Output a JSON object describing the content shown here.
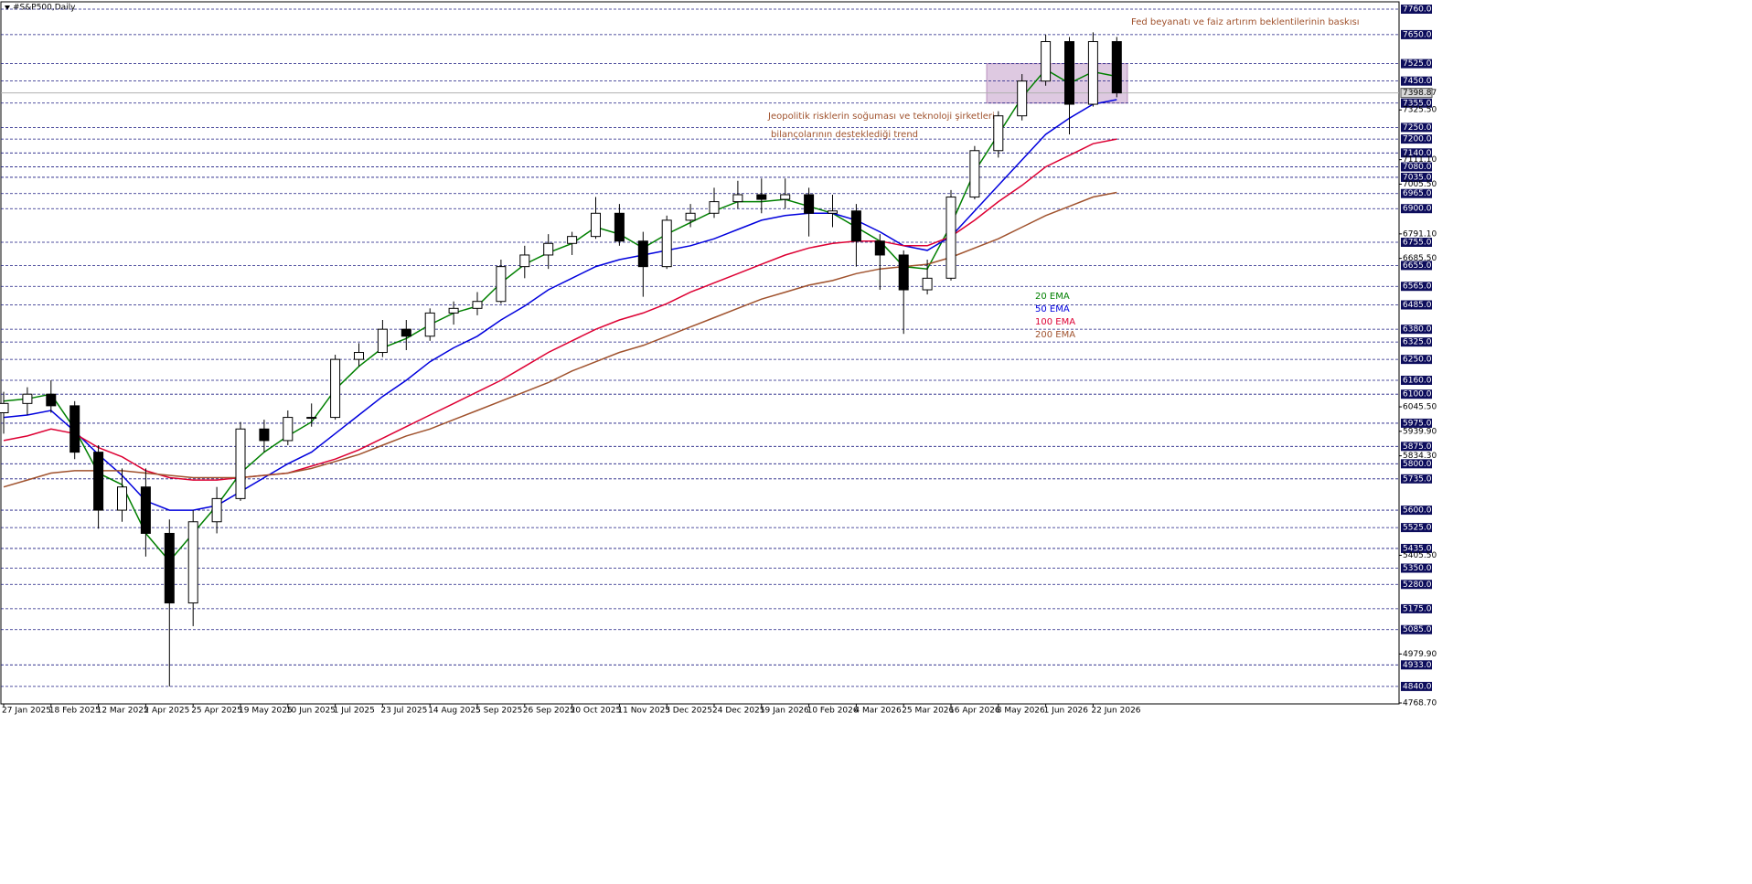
{
  "chart_data": {
    "type": "candlestick",
    "title": "#S&P500,Daily",
    "ylim": [
      4768.7,
      7760
    ],
    "categories": [
      "27 Jan 2025",
      null,
      "18 Feb 2025",
      null,
      "12 Mar 2025",
      null,
      "2 Apr 2025",
      null,
      "25 Apr 2025",
      null,
      "19 May 2025",
      null,
      "10 Jun 2025",
      null,
      "1 Jul 2025",
      null,
      "23 Jul 2025",
      null,
      "14 Aug 2025",
      null,
      "5 Sep 2025",
      null,
      "26 Sep 2025",
      null,
      "20 Oct 2025",
      null,
      "11 Nov 2025",
      null,
      "3 Dec 2025",
      null,
      "24 Dec 2025",
      null,
      "19 Jan 2026",
      null,
      "10 Feb 2026",
      null,
      "4 Mar 2026",
      null,
      "25 Mar 2026",
      null,
      "16 Apr 2026",
      null,
      "8 May 2026",
      null,
      "1 Jun 2026",
      null,
      "22 Jun 2026",
      null
    ],
    "open": [
      6020,
      6060,
      6100,
      6050,
      5850,
      5600,
      5700,
      5500,
      5200,
      5550,
      5650,
      5950,
      5900,
      6000,
      6000,
      6250,
      6280,
      6380,
      6350,
      6450,
      6470,
      6500,
      6650,
      6700,
      6750,
      6780,
      6880,
      6760,
      6650,
      6850,
      6880,
      6930,
      6960,
      6940,
      6960,
      6880,
      6890,
      6760,
      6700,
      6550,
      6600,
      6950,
      7150,
      7300,
      7450,
      7620,
      7350,
      7620
    ],
    "high": [
      6110,
      6130,
      6160,
      6070,
      5880,
      5780,
      5780,
      5560,
      5600,
      5700,
      5980,
      5990,
      6030,
      6060,
      6270,
      6320,
      6420,
      6420,
      6470,
      6500,
      6540,
      6680,
      6740,
      6790,
      6800,
      6950,
      6920,
      6800,
      6870,
      6920,
      6990,
      7020,
      7030,
      7030,
      6990,
      6960,
      6920,
      6790,
      6720,
      6680,
      6980,
      7170,
      7320,
      7480,
      7650,
      7640,
      7660,
      7640
    ],
    "low": [
      5930,
      6010,
      6020,
      5820,
      5520,
      5550,
      5400,
      4840,
      5100,
      5500,
      5640,
      5850,
      5880,
      5960,
      5990,
      6220,
      6260,
      6290,
      6330,
      6400,
      6440,
      6490,
      6600,
      6640,
      6700,
      6770,
      6740,
      6520,
      6640,
      6820,
      6860,
      6900,
      6880,
      6900,
      6780,
      6820,
      6650,
      6550,
      6360,
      6530,
      6590,
      6940,
      7120,
      7280,
      7430,
      7220,
      7340,
      7380
    ],
    "close": [
      6060,
      6100,
      6050,
      5850,
      5600,
      5700,
      5500,
      5200,
      5550,
      5650,
      5950,
      5900,
      6000,
      6000,
      6250,
      6280,
      6380,
      6350,
      6450,
      6470,
      6500,
      6650,
      6700,
      6750,
      6780,
      6880,
      6760,
      6650,
      6850,
      6880,
      6930,
      6960,
      6940,
      6960,
      6880,
      6890,
      6760,
      6700,
      6550,
      6600,
      6950,
      7150,
      7300,
      7450,
      7620,
      7350,
      7620,
      7398.87
    ],
    "series": [
      {
        "name": "20 EMA",
        "color": "#008000",
        "values": [
          6070,
          6080,
          6100,
          5950,
          5760,
          5710,
          5500,
          5380,
          5500,
          5620,
          5760,
          5850,
          5920,
          5980,
          6120,
          6220,
          6300,
          6340,
          6400,
          6450,
          6480,
          6580,
          6660,
          6710,
          6750,
          6820,
          6790,
          6730,
          6790,
          6840,
          6890,
          6930,
          6930,
          6940,
          6910,
          6880,
          6820,
          6760,
          6650,
          6640,
          6830,
          7060,
          7220,
          7380,
          7500,
          7440,
          7490,
          7470
        ]
      },
      {
        "name": "50 EMA",
        "color": "#0000dd",
        "values": [
          6000,
          6010,
          6030,
          5940,
          5840,
          5750,
          5640,
          5600,
          5600,
          5620,
          5680,
          5740,
          5800,
          5850,
          5930,
          6010,
          6090,
          6160,
          6240,
          6300,
          6350,
          6420,
          6480,
          6550,
          6600,
          6650,
          6680,
          6700,
          6720,
          6740,
          6770,
          6810,
          6850,
          6870,
          6880,
          6880,
          6850,
          6800,
          6740,
          6720,
          6780,
          6890,
          7000,
          7110,
          7220,
          7290,
          7350,
          7370
        ]
      },
      {
        "name": "100 EMA",
        "color": "#dd0033",
        "values": [
          5900,
          5920,
          5950,
          5930,
          5870,
          5830,
          5770,
          5740,
          5730,
          5730,
          5740,
          5750,
          5760,
          5790,
          5820,
          5860,
          5910,
          5960,
          6010,
          6060,
          6110,
          6160,
          6220,
          6280,
          6330,
          6380,
          6420,
          6450,
          6490,
          6540,
          6580,
          6620,
          6660,
          6700,
          6730,
          6750,
          6760,
          6760,
          6740,
          6740,
          6780,
          6850,
          6930,
          7000,
          7080,
          7130,
          7180,
          7200
        ]
      },
      {
        "name": "200 EMA",
        "color": "#a0522d",
        "values": [
          5700,
          5730,
          5760,
          5770,
          5770,
          5770,
          5760,
          5750,
          5740,
          5740,
          5740,
          5750,
          5760,
          5780,
          5810,
          5840,
          5880,
          5920,
          5950,
          5990,
          6030,
          6070,
          6110,
          6150,
          6200,
          6240,
          6280,
          6310,
          6350,
          6390,
          6430,
          6470,
          6510,
          6540,
          6570,
          6590,
          6620,
          6640,
          6650,
          6660,
          6690,
          6730,
          6770,
          6820,
          6870,
          6910,
          6950,
          6970
        ]
      }
    ],
    "levels": [
      {
        "value": 7760,
        "label": "7760.00"
      },
      {
        "value": 7650,
        "label": "7650.00"
      },
      {
        "value": 7525,
        "label": "7525.00"
      },
      {
        "value": 7450,
        "label": "7450.00"
      },
      {
        "value": 7355,
        "label": "7355.00"
      },
      {
        "value": 7250,
        "label": "7250.00"
      },
      {
        "value": 7200,
        "label": "7200.00"
      },
      {
        "value": 7140,
        "label": "7140.00"
      },
      {
        "value": 7080,
        "label": "7080.00"
      },
      {
        "value": 7035,
        "label": "7035.00"
      },
      {
        "value": 6965,
        "label": "6965.00"
      },
      {
        "value": 6900,
        "label": "6900.00"
      },
      {
        "value": 6755,
        "label": "6755.00"
      },
      {
        "value": 6655,
        "label": "6655.00"
      },
      {
        "value": 6565,
        "label": "6565.00"
      },
      {
        "value": 6485,
        "label": "6485.00"
      },
      {
        "value": 6380,
        "label": "6380.00"
      },
      {
        "value": 6325,
        "label": "6325.00"
      },
      {
        "value": 6250,
        "label": "6250.00"
      },
      {
        "value": 6160,
        "label": "6160.00"
      },
      {
        "value": 6100,
        "label": "6100.00"
      },
      {
        "value": 5975,
        "label": "5975.00"
      },
      {
        "value": 5875,
        "label": "5875.00"
      },
      {
        "value": 5800,
        "label": "5800.00"
      },
      {
        "value": 5735,
        "label": "5735.00"
      },
      {
        "value": 5600,
        "label": "5600.00"
      },
      {
        "value": 5525,
        "label": "5525.00"
      },
      {
        "value": 5435,
        "label": "5435.00"
      },
      {
        "value": 5350,
        "label": "5350.00"
      },
      {
        "value": 5280,
        "label": "5280.00"
      },
      {
        "value": 5175,
        "label": "5175.00"
      },
      {
        "value": 5085,
        "label": "5085.00"
      },
      {
        "value": 4933,
        "label": "4933.00"
      },
      {
        "value": 4840,
        "label": "4840.00"
      }
    ],
    "yticks": [
      {
        "value": 7325.5,
        "label": "7325.50"
      },
      {
        "value": 7111.1,
        "label": "7111.10"
      },
      {
        "value": 7005.5,
        "label": "7005.50"
      },
      {
        "value": 6791.1,
        "label": "6791.10"
      },
      {
        "value": 6685.5,
        "label": "6685.50"
      },
      {
        "value": 6045.5,
        "label": "6045.50"
      },
      {
        "value": 5939.9,
        "label": "5939.90"
      },
      {
        "value": 5834.3,
        "label": "5834.30"
      },
      {
        "value": 5405.5,
        "label": "5405.50"
      },
      {
        "value": 4979.9,
        "label": "4979.90"
      },
      {
        "value": 4768.7,
        "label": "4768.70"
      }
    ],
    "current_price": {
      "value": 7398.87,
      "label": "7398.87"
    },
    "zone": [
      7355,
      7525
    ],
    "annotations": [
      "Fed beyanatı ve faiz artırım beklentilerinin baskısı",
      "Jeopolitik risklerin soğuması ve teknoloji şirketleri",
      "bilançolarının desteklediği trend"
    ]
  }
}
